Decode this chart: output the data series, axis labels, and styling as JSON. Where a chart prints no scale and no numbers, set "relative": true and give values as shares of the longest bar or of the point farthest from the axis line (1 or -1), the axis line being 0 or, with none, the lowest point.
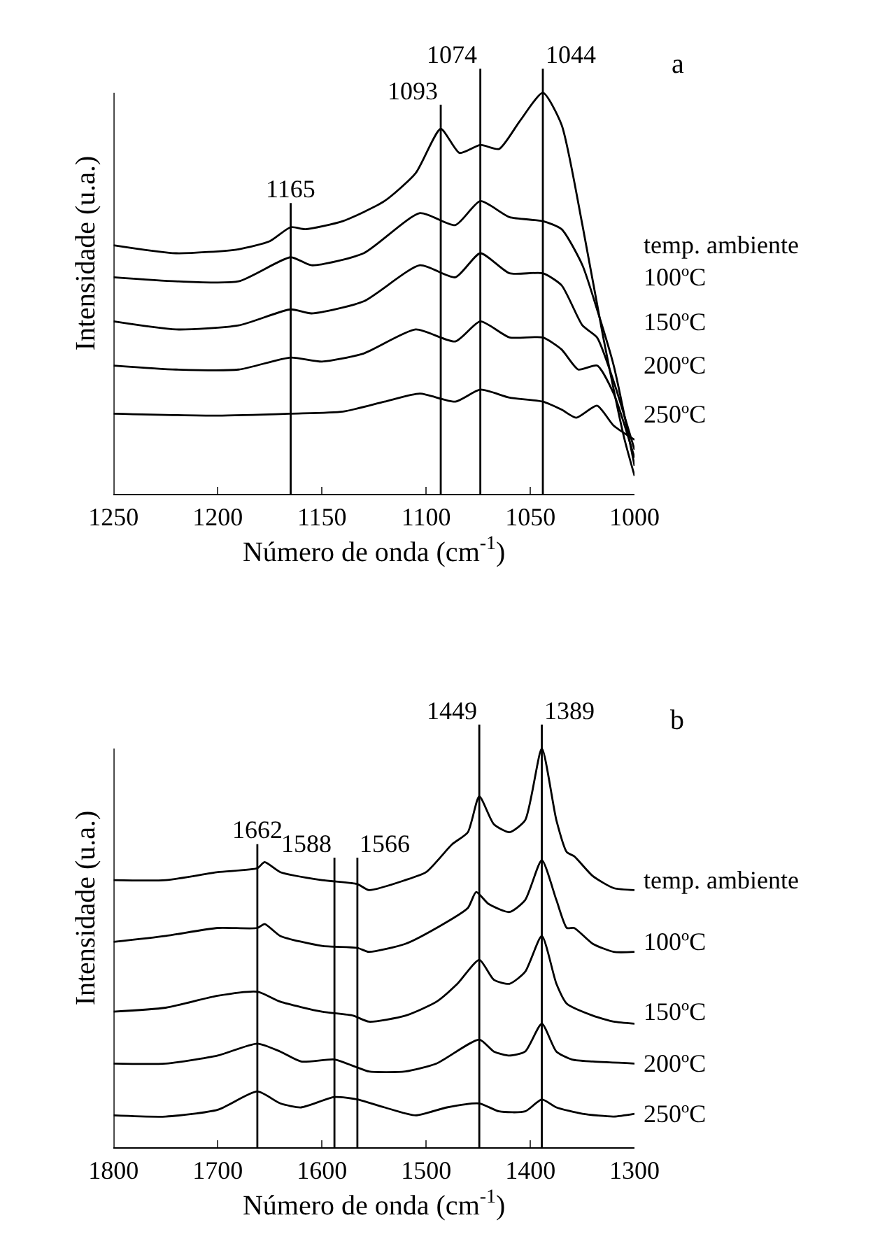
{
  "chart_data": [
    {
      "type": "line",
      "relative": true,
      "xlabel": "Número de onda (cm$^{-1}$)",
      "ylabel": "Intensidade (u.a.)",
      "xlim": [
        1250,
        1000
      ],
      "xticks": [
        1250,
        1200,
        1150,
        1100,
        1050,
        1000
      ],
      "tick_labels": "x",
      "annotations": [
        "a"
      ],
      "ref_lines": [
        {
          "axis": "x",
          "value": 1165,
          "label": "1165",
          "color": "#000000"
        },
        {
          "axis": "x",
          "value": 1093,
          "label": "1093",
          "color": "#000000"
        },
        {
          "axis": "x",
          "value": 1074,
          "label": "1074",
          "color": "#000000"
        },
        {
          "axis": "x",
          "value": 1044,
          "label": "1044",
          "color": "#000000"
        }
      ],
      "series": [
        {
          "name": "temp. ambiente",
          "color": "#000000",
          "x": [
            1250,
            1220,
            1190,
            1175,
            1165,
            1158,
            1140,
            1120,
            1105,
            1093,
            1084,
            1074,
            1065,
            1055,
            1044,
            1035,
            1025,
            1015,
            1005,
            1000
          ],
          "values": [
            0.62,
            0.6,
            0.61,
            0.63,
            0.665,
            0.66,
            0.68,
            0.73,
            0.8,
            0.91,
            0.85,
            0.87,
            0.86,
            0.93,
            1.0,
            0.92,
            0.67,
            0.39,
            0.14,
            0.045
          ]
        },
        {
          "name": "100ºC",
          "color": "#000000",
          "x": [
            1250,
            1220,
            1190,
            1165,
            1155,
            1130,
            1103,
            1086,
            1074,
            1060,
            1044,
            1035,
            1025,
            1018,
            1010,
            1000
          ],
          "values": [
            0.54,
            0.53,
            0.53,
            0.59,
            0.57,
            0.6,
            0.7,
            0.67,
            0.73,
            0.69,
            0.68,
            0.66,
            0.57,
            0.46,
            0.32,
            0.07
          ]
        },
        {
          "name": "150ºC",
          "color": "#000000",
          "x": [
            1250,
            1220,
            1190,
            1165,
            1155,
            1130,
            1103,
            1086,
            1074,
            1060,
            1044,
            1035,
            1025,
            1018,
            1010,
            1000
          ],
          "values": [
            0.43,
            0.41,
            0.42,
            0.46,
            0.45,
            0.48,
            0.57,
            0.54,
            0.6,
            0.55,
            0.55,
            0.52,
            0.42,
            0.39,
            0.28,
            0.11
          ]
        },
        {
          "name": "200ºC",
          "color": "#000000",
          "x": [
            1250,
            1220,
            1190,
            1165,
            1150,
            1130,
            1105,
            1086,
            1074,
            1060,
            1044,
            1035,
            1027,
            1018,
            1010,
            1000
          ],
          "values": [
            0.32,
            0.31,
            0.31,
            0.34,
            0.33,
            0.35,
            0.41,
            0.38,
            0.43,
            0.39,
            0.39,
            0.36,
            0.31,
            0.32,
            0.25,
            0.09
          ]
        },
        {
          "name": "250ºC",
          "color": "#000000",
          "x": [
            1250,
            1200,
            1165,
            1140,
            1120,
            1103,
            1086,
            1074,
            1060,
            1044,
            1035,
            1028,
            1018,
            1010,
            1000
          ],
          "values": [
            0.2,
            0.195,
            0.2,
            0.205,
            0.23,
            0.25,
            0.23,
            0.26,
            0.24,
            0.23,
            0.21,
            0.19,
            0.22,
            0.17,
            0.135
          ]
        }
      ]
    },
    {
      "type": "line",
      "relative": true,
      "xlabel": "Número de onda (cm$^{-1}$)",
      "ylabel": "Intensidade (u.a.)",
      "xlim": [
        1800,
        1300
      ],
      "xticks": [
        1800,
        1700,
        1600,
        1500,
        1400,
        1300
      ],
      "tick_labels": "x",
      "annotations": [
        "b"
      ],
      "ref_lines": [
        {
          "axis": "x",
          "value": 1662,
          "label": "1662",
          "color": "#000000"
        },
        {
          "axis": "x",
          "value": 1588,
          "label": "1588",
          "color": "#000000"
        },
        {
          "axis": "x",
          "value": 1566,
          "label": "1566",
          "color": "#000000"
        },
        {
          "axis": "x",
          "value": 1449,
          "label": "1449",
          "color": "#000000"
        },
        {
          "axis": "x",
          "value": 1389,
          "label": "1389",
          "color": "#000000"
        }
      ],
      "series": [
        {
          "name": "temp. ambiente",
          "color": "#000000",
          "x": [
            1800,
            1750,
            1700,
            1662,
            1655,
            1640,
            1600,
            1566,
            1555,
            1520,
            1500,
            1475,
            1460,
            1449,
            1435,
            1420,
            1405,
            1389,
            1375,
            1365,
            1358,
            1340,
            1320,
            1300
          ],
          "values": [
            0.67,
            0.67,
            0.69,
            0.7,
            0.715,
            0.69,
            0.67,
            0.66,
            0.645,
            0.67,
            0.69,
            0.76,
            0.79,
            0.88,
            0.81,
            0.79,
            0.82,
            1.0,
            0.82,
            0.74,
            0.73,
            0.68,
            0.65,
            0.645
          ]
        },
        {
          "name": "100ºC",
          "color": "#000000",
          "x": [
            1800,
            1750,
            1700,
            1662,
            1655,
            1640,
            1600,
            1566,
            1555,
            1520,
            1490,
            1460,
            1452,
            1440,
            1420,
            1405,
            1389,
            1375,
            1365,
            1358,
            1340,
            1320,
            1300
          ],
          "values": [
            0.515,
            0.53,
            0.55,
            0.55,
            0.56,
            0.53,
            0.505,
            0.5,
            0.49,
            0.51,
            0.55,
            0.6,
            0.64,
            0.61,
            0.59,
            0.62,
            0.72,
            0.62,
            0.55,
            0.55,
            0.51,
            0.49,
            0.49
          ]
        },
        {
          "name": "150ºC",
          "color": "#000000",
          "x": [
            1800,
            1750,
            1700,
            1662,
            1640,
            1600,
            1570,
            1555,
            1520,
            1490,
            1470,
            1449,
            1435,
            1420,
            1405,
            1389,
            1375,
            1365,
            1340,
            1320,
            1300
          ],
          "values": [
            0.34,
            0.35,
            0.38,
            0.39,
            0.365,
            0.34,
            0.33,
            0.315,
            0.33,
            0.365,
            0.41,
            0.47,
            0.42,
            0.41,
            0.44,
            0.53,
            0.41,
            0.36,
            0.33,
            0.315,
            0.31
          ]
        },
        {
          "name": "200ºC",
          "color": "#000000",
          "x": [
            1800,
            1750,
            1700,
            1662,
            1640,
            1620,
            1588,
            1566,
            1555,
            1520,
            1490,
            1449,
            1435,
            1420,
            1405,
            1389,
            1375,
            1360,
            1340,
            1300
          ],
          "values": [
            0.21,
            0.21,
            0.23,
            0.26,
            0.24,
            0.215,
            0.22,
            0.2,
            0.19,
            0.19,
            0.21,
            0.27,
            0.24,
            0.23,
            0.24,
            0.31,
            0.24,
            0.22,
            0.215,
            0.21
          ]
        },
        {
          "name": "250ºC",
          "color": "#000000",
          "x": [
            1800,
            1750,
            1700,
            1662,
            1640,
            1620,
            1588,
            1566,
            1540,
            1510,
            1480,
            1449,
            1430,
            1405,
            1389,
            1375,
            1350,
            1320,
            1300
          ],
          "values": [
            0.08,
            0.077,
            0.094,
            0.14,
            0.11,
            0.1,
            0.126,
            0.12,
            0.1,
            0.08,
            0.1,
            0.11,
            0.09,
            0.09,
            0.12,
            0.1,
            0.084,
            0.077,
            0.084
          ]
        }
      ]
    }
  ]
}
